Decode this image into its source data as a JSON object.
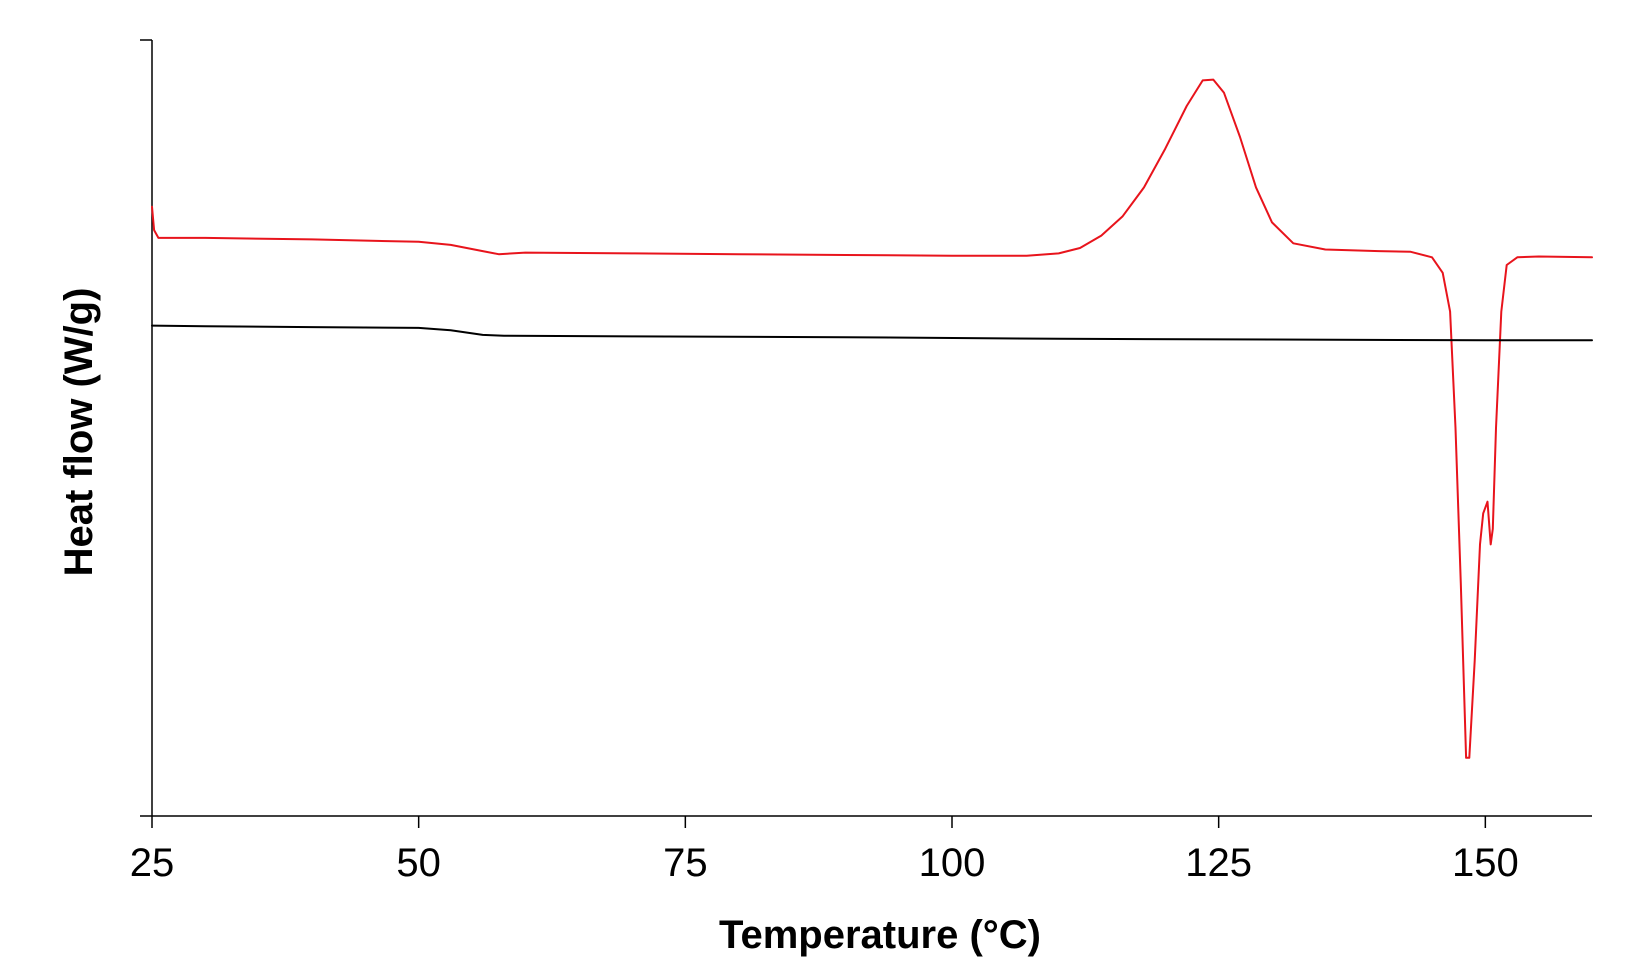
{
  "chart_data": {
    "type": "line",
    "xlabel": "Temperature (°C)",
    "ylabel": "Heat flow (W/g)",
    "xlim": [
      25,
      160
    ],
    "ylim": [
      0,
      100
    ],
    "x_ticks": [
      "25",
      "50",
      "75",
      "100",
      "125",
      "150"
    ],
    "y_tick_labels_shown": false,
    "grid": false,
    "legend": "none",
    "series": [
      {
        "color": "#e8141c",
        "points": [
          [
            25.0,
            78.5
          ],
          [
            25.2,
            75.5
          ],
          [
            25.6,
            74.5
          ],
          [
            30,
            74.5
          ],
          [
            40,
            74.3
          ],
          [
            50,
            74.0
          ],
          [
            53,
            73.6
          ],
          [
            56,
            72.8
          ],
          [
            57.5,
            72.4
          ],
          [
            60,
            72.6
          ],
          [
            70,
            72.5
          ],
          [
            80,
            72.4
          ],
          [
            90,
            72.3
          ],
          [
            100,
            72.2
          ],
          [
            107,
            72.2
          ],
          [
            110,
            72.5
          ],
          [
            112,
            73.2
          ],
          [
            114,
            74.8
          ],
          [
            116,
            77.3
          ],
          [
            118,
            81.0
          ],
          [
            120,
            86.0
          ],
          [
            122,
            91.5
          ],
          [
            123.5,
            94.8
          ],
          [
            124.5,
            94.9
          ],
          [
            125.5,
            93.2
          ],
          [
            127,
            87.5
          ],
          [
            128.5,
            81.0
          ],
          [
            130,
            76.5
          ],
          [
            132,
            73.8
          ],
          [
            135,
            73.0
          ],
          [
            140,
            72.8
          ],
          [
            143,
            72.7
          ],
          [
            145,
            72.0
          ],
          [
            146,
            70.0
          ],
          [
            146.7,
            65.0
          ],
          [
            147.2,
            50.0
          ],
          [
            147.7,
            30.0
          ],
          [
            148.2,
            7.5
          ],
          [
            148.5,
            7.5
          ],
          [
            149.0,
            20.0
          ],
          [
            149.5,
            35.0
          ],
          [
            149.8,
            39.0
          ],
          [
            150.2,
            40.5
          ],
          [
            150.5,
            35.0
          ],
          [
            150.7,
            37.0
          ],
          [
            151.0,
            50.0
          ],
          [
            151.5,
            65.0
          ],
          [
            152.0,
            71.0
          ],
          [
            153,
            72.0
          ],
          [
            155,
            72.1
          ],
          [
            160,
            72.0
          ]
        ]
      },
      {
        "color": "#000000",
        "points": [
          [
            25,
            63.2
          ],
          [
            30,
            63.1
          ],
          [
            40,
            63.0
          ],
          [
            50,
            62.9
          ],
          [
            53,
            62.6
          ],
          [
            56,
            62.0
          ],
          [
            58,
            61.9
          ],
          [
            70,
            61.8
          ],
          [
            90,
            61.7
          ],
          [
            110,
            61.5
          ],
          [
            130,
            61.4
          ],
          [
            150,
            61.3
          ],
          [
            160,
            61.3
          ]
        ]
      }
    ]
  }
}
